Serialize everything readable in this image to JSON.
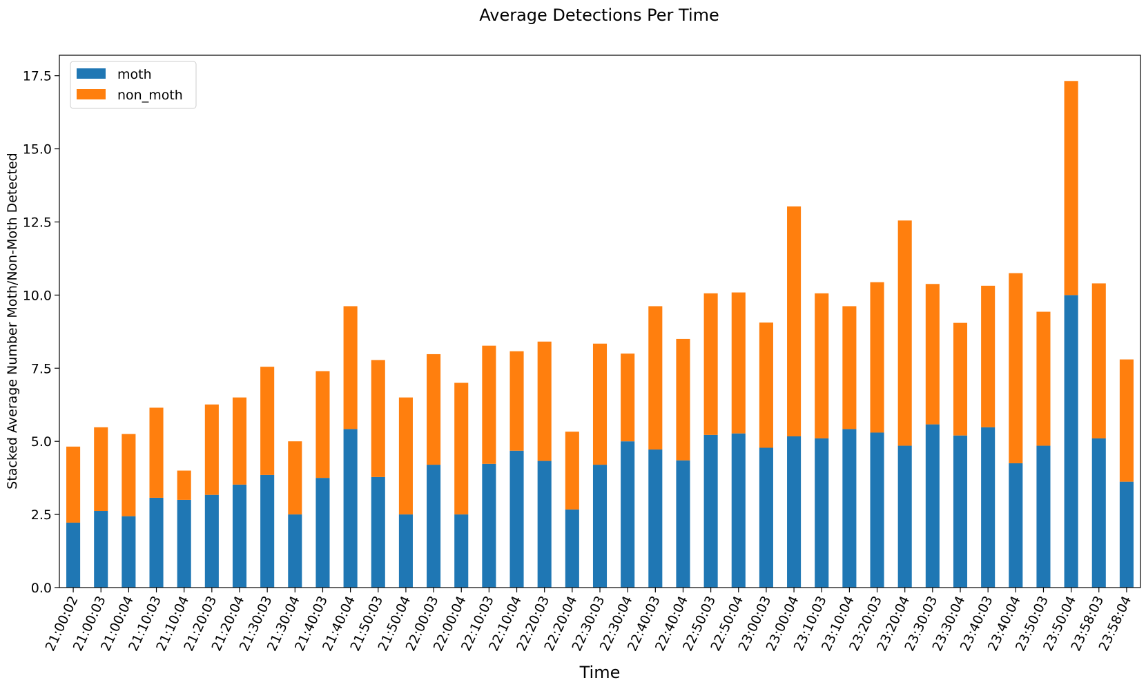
{
  "chart_data": {
    "type": "bar",
    "stacked": true,
    "title": "Average Detections Per Time",
    "xlabel": "Time",
    "ylabel": "Stacked Average Number Moth/Non-Moth Detected",
    "ylim": [
      0,
      18.2
    ],
    "yticks": [
      0.0,
      2.5,
      5.0,
      7.5,
      10.0,
      12.5,
      15.0,
      17.5
    ],
    "ytick_labels": [
      "0.0",
      "2.5",
      "5.0",
      "7.5",
      "10.0",
      "12.5",
      "15.0",
      "17.5"
    ],
    "legend_position": "top-left",
    "categories": [
      "21:00:02",
      "21:00:03",
      "21:00:04",
      "21:10:03",
      "21:10:04",
      "21:20:03",
      "21:20:04",
      "21:30:03",
      "21:30:04",
      "21:40:03",
      "21:40:04",
      "21:50:03",
      "21:50:04",
      "22:00:03",
      "22:00:04",
      "22:10:03",
      "22:10:04",
      "22:20:03",
      "22:20:04",
      "22:30:03",
      "22:30:04",
      "22:40:03",
      "22:40:04",
      "22:50:03",
      "22:50:04",
      "23:00:03",
      "23:00:04",
      "23:10:03",
      "23:10:04",
      "23:20:03",
      "23:20:04",
      "23:30:03",
      "23:30:04",
      "23:40:03",
      "23:40:04",
      "23:50:03",
      "23:50:04",
      "23:58:03",
      "23:58:04"
    ],
    "series": [
      {
        "name": "moth",
        "color": "#1f77b4",
        "values": [
          2.22,
          2.62,
          2.44,
          3.07,
          3.0,
          3.17,
          3.52,
          3.85,
          2.5,
          3.75,
          5.42,
          3.78,
          2.5,
          4.2,
          2.5,
          4.23,
          4.68,
          4.33,
          2.67,
          4.2,
          5.0,
          4.72,
          4.35,
          5.22,
          5.27,
          4.78,
          5.17,
          5.1,
          5.42,
          5.3,
          4.85,
          5.58,
          5.2,
          5.48,
          4.25,
          4.85,
          10.0,
          5.1,
          3.62
        ]
      },
      {
        "name": "non_moth",
        "color": "#ff7f0e",
        "values": [
          2.6,
          2.86,
          2.81,
          3.08,
          1.0,
          3.09,
          2.98,
          3.7,
          2.5,
          3.65,
          4.2,
          4.0,
          4.0,
          3.78,
          4.5,
          4.04,
          3.4,
          4.08,
          2.66,
          4.14,
          3.0,
          4.9,
          4.15,
          4.84,
          4.82,
          4.28,
          7.86,
          4.96,
          4.2,
          5.14,
          7.7,
          4.8,
          3.85,
          4.84,
          6.5,
          4.58,
          7.32,
          5.3,
          4.18
        ]
      }
    ]
  }
}
